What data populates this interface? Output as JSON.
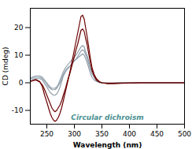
{
  "chart_data": {
    "type": "line",
    "title": "",
    "xlabel": "Wavelength (nm)",
    "ylabel": "CD (mdeg)",
    "xlim": [
      220,
      500
    ],
    "ylim": [
      -15,
      27
    ],
    "xticks": [
      250,
      300,
      350,
      400,
      450,
      500
    ],
    "yticks": [
      -10,
      0,
      10,
      20
    ],
    "grid": false,
    "annotations": [
      {
        "text": "Circular dichroism",
        "color": "#4a9090"
      }
    ],
    "x": [
      220,
      230,
      237,
      242,
      246,
      250,
      253,
      256,
      259,
      262,
      265,
      268,
      271,
      274,
      277,
      280,
      284,
      288,
      292,
      296,
      300,
      303,
      306,
      309,
      312,
      315,
      318,
      320,
      323,
      326,
      329,
      332,
      336,
      340,
      345,
      350,
      360,
      370,
      385,
      400,
      420,
      450,
      480,
      500
    ],
    "series": [
      {
        "color": "#909eaa",
        "values": [
          1.5,
          2,
          2,
          1.5,
          0.5,
          -0.5,
          -1.5,
          -2,
          -2.5,
          -2.5,
          -2.5,
          -2,
          -1,
          0,
          1.5,
          3,
          4.5,
          5.5,
          6,
          7,
          8,
          8.5,
          9.5,
          10.5,
          11.5,
          12,
          11.5,
          10.5,
          9,
          7,
          5,
          3.5,
          2,
          0.8,
          0.2,
          0,
          -0.1,
          -0.1,
          0,
          0,
          0,
          0,
          0,
          0
        ]
      },
      {
        "color": "#909eaa",
        "values": [
          1.8,
          2.5,
          2.5,
          2.0,
          1.0,
          0,
          -0.8,
          -1.5,
          -2,
          -2,
          -2,
          -1.5,
          -0.5,
          1,
          2.5,
          4,
          5.5,
          6.5,
          7.5,
          8.5,
          9.5,
          10,
          11,
          12,
          13,
          13.5,
          13,
          11.5,
          10,
          8,
          5.5,
          3.5,
          2,
          0.8,
          0.2,
          0,
          -0.1,
          -0.1,
          0,
          0,
          0,
          0,
          0,
          0
        ]
      },
      {
        "color": "#909eaa",
        "values": [
          1.0,
          1.5,
          1.5,
          1.0,
          -0.3,
          -1.5,
          -2.5,
          -3.5,
          -4,
          -4.5,
          -4.5,
          -4,
          -3,
          -1.5,
          0.5,
          2.5,
          4,
          5,
          6,
          7,
          8,
          8.5,
          9,
          9.5,
          10,
          10.5,
          10,
          9,
          7.5,
          5.5,
          3.5,
          2,
          1,
          0.5,
          0.1,
          0,
          -0.1,
          -0.1,
          0,
          0,
          0,
          0,
          0,
          0
        ]
      },
      {
        "color": "#6b0000",
        "values": [
          0.5,
          1.2,
          0.5,
          -1.5,
          -4.5,
          -7,
          -9,
          -11,
          -12.5,
          -13.5,
          -14,
          -13.5,
          -12.5,
          -11,
          -9,
          -6.5,
          -3,
          0.5,
          4,
          8,
          12,
          15,
          18,
          21,
          24,
          24.5,
          23,
          20.5,
          17,
          13,
          9,
          5.5,
          3,
          1.5,
          0.5,
          0,
          -0.3,
          -0.3,
          -0.2,
          -0.1,
          0,
          0,
          0,
          0
        ]
      },
      {
        "color": "#6b0000",
        "values": [
          0.5,
          1.0,
          0.3,
          -0.8,
          -2.5,
          -4.5,
          -6,
          -7.5,
          -9,
          -10,
          -10.5,
          -10,
          -9,
          -8,
          -6.5,
          -4.5,
          -2,
          1,
          3.5,
          6.5,
          9.5,
          12,
          14,
          16.5,
          19,
          19.5,
          18.5,
          16.5,
          14,
          10.5,
          7.5,
          4.5,
          2.5,
          1,
          0.3,
          0,
          -0.2,
          -0.2,
          -0.1,
          -0.1,
          0,
          0,
          0,
          0
        ]
      }
    ]
  }
}
